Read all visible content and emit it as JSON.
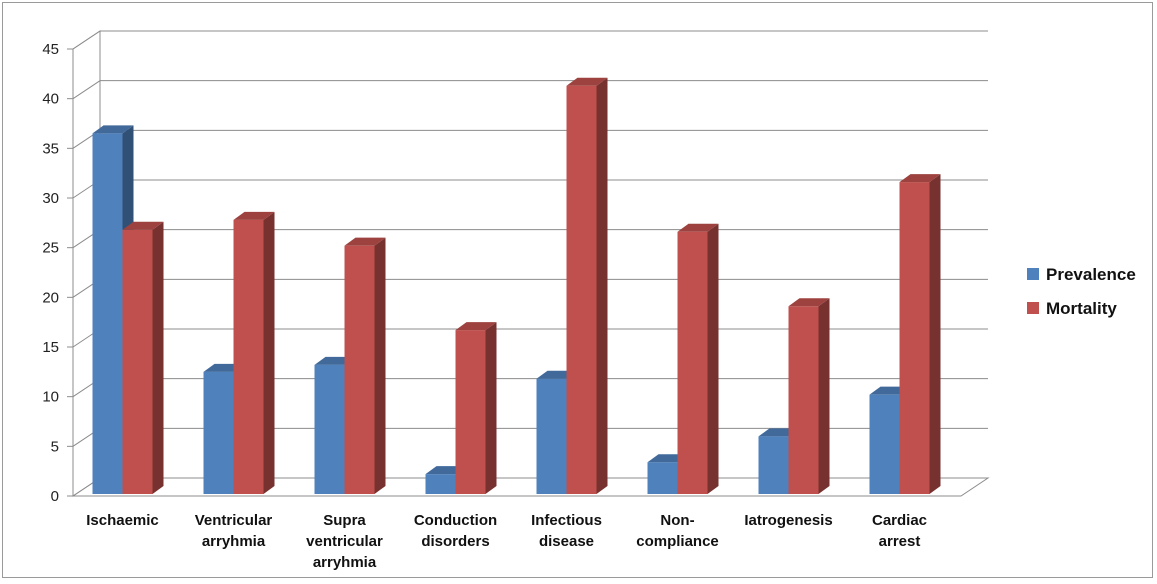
{
  "chart_data": {
    "type": "bar",
    "style": "3d-clustered-column",
    "title": "",
    "xlabel": "",
    "ylabel": "",
    "categories": [
      [
        "Ischaemic"
      ],
      [
        "Ventricular",
        "arryhmia"
      ],
      [
        "Supra",
        "ventricular",
        "arryhmia"
      ],
      [
        "Conduction",
        "disorders"
      ],
      [
        "Infectious",
        "disease"
      ],
      [
        "Non-",
        "compliance"
      ],
      [
        "Iatrogenesis"
      ],
      [
        "Cardiac",
        "arrest"
      ]
    ],
    "series": [
      {
        "name": "Prevalence",
        "color": "#4f81bd",
        "values": [
          36.5,
          12.5,
          13.2,
          2.2,
          11.8,
          3.4,
          6.0,
          10.2
        ]
      },
      {
        "name": "Mortality",
        "color": "#c0504d",
        "values": [
          26.8,
          27.8,
          25.2,
          16.7,
          41.3,
          26.6,
          19.1,
          31.6
        ]
      }
    ],
    "ylim": [
      0,
      45
    ],
    "yticks": [
      0,
      5,
      10,
      15,
      20,
      25,
      30,
      35,
      40,
      45
    ],
    "grid": true,
    "legend": "right"
  }
}
